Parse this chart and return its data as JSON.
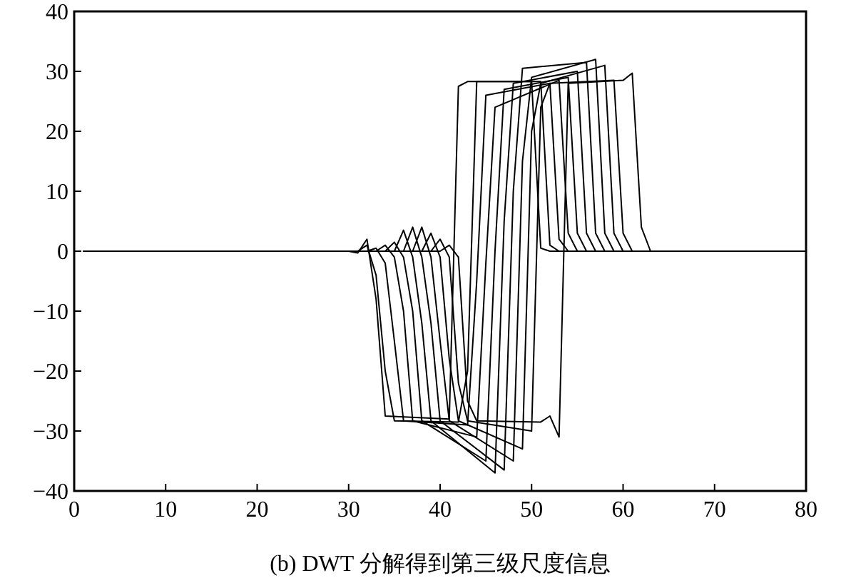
{
  "chart_data": {
    "type": "line",
    "title": "(b) DWT 分解得到第三级尺度信息",
    "xlim": [
      0,
      80
    ],
    "ylim": [
      -40,
      40
    ],
    "xticks": [
      0,
      10,
      20,
      30,
      40,
      50,
      60,
      70,
      80
    ],
    "yticks": [
      -40,
      -30,
      -20,
      -10,
      0,
      10,
      20,
      30,
      40
    ],
    "grid": false,
    "marker": "none",
    "line_style": "solid",
    "series": [
      {
        "color": "#000000",
        "x": [
          1,
          30,
          31,
          32,
          33,
          34,
          41,
          42,
          43,
          50,
          51,
          52,
          80
        ],
        "values": [
          0,
          0,
          -0.3,
          2,
          -8,
          -27.5,
          -28,
          27.5,
          28.3,
          28.3,
          0.5,
          0,
          0
        ]
      },
      {
        "color": "#000000",
        "x": [
          1,
          31,
          32,
          33,
          34,
          35,
          42,
          43,
          44,
          51,
          52,
          53,
          80
        ],
        "values": [
          0,
          0,
          1,
          -4,
          -20,
          -28.3,
          -28.5,
          -20,
          28.3,
          28.3,
          1,
          0,
          0
        ]
      },
      {
        "color": "#000000",
        "x": [
          1,
          32,
          33,
          34,
          35,
          36,
          43,
          44,
          45,
          52,
          53,
          54,
          80
        ],
        "values": [
          0,
          0,
          0.5,
          -2,
          -15,
          -28.3,
          -29,
          -5,
          26,
          28,
          2,
          0,
          0
        ]
      },
      {
        "color": "#000000",
        "x": [
          1,
          33,
          34,
          35,
          36,
          37,
          44,
          45,
          46,
          53,
          54,
          55,
          80
        ],
        "values": [
          0,
          0,
          1,
          -1,
          -10,
          -28.3,
          -31,
          -2,
          24,
          28.5,
          3,
          0,
          0
        ]
      },
      {
        "color": "#000000",
        "x": [
          1,
          34,
          35,
          36,
          37,
          38,
          45,
          46,
          47,
          54,
          55,
          56,
          80
        ],
        "values": [
          0,
          0,
          1.5,
          -1,
          -10,
          -28.3,
          -35,
          0,
          27,
          29,
          3,
          0,
          0
        ]
      },
      {
        "color": "#000000",
        "x": [
          1,
          35,
          36,
          37,
          38,
          39,
          46,
          47,
          48,
          55,
          56,
          57,
          80
        ],
        "values": [
          0,
          0,
          3.5,
          -1,
          -12,
          -28.3,
          -37,
          5,
          28,
          30,
          3,
          0,
          0
        ]
      },
      {
        "color": "#000000",
        "x": [
          1,
          36,
          37,
          38,
          39,
          40,
          47,
          48,
          49,
          56,
          57,
          58,
          80
        ],
        "values": [
          0,
          0,
          4,
          -1,
          -12,
          -28.3,
          -36.5,
          10,
          30.5,
          31.5,
          3,
          0,
          0
        ]
      },
      {
        "color": "#000000",
        "x": [
          1,
          37,
          38,
          39,
          40,
          41,
          48,
          49,
          50,
          57,
          58,
          59,
          80
        ],
        "values": [
          0,
          0,
          4,
          -1,
          -15,
          -28.3,
          -35,
          15,
          29,
          32,
          3,
          0,
          0
        ]
      },
      {
        "color": "#000000",
        "x": [
          1,
          38,
          39,
          40,
          41,
          42,
          49,
          50,
          51,
          58,
          59,
          60,
          80
        ],
        "values": [
          0,
          0,
          3,
          -1,
          -18,
          -28.3,
          -33,
          20,
          28,
          31,
          3,
          0,
          0
        ]
      },
      {
        "color": "#000000",
        "x": [
          1,
          39,
          40,
          41,
          42,
          43,
          50,
          51,
          52,
          59,
          60,
          61,
          80
        ],
        "values": [
          0,
          0,
          2,
          -1,
          -22,
          -28.3,
          -30,
          24,
          28,
          28.5,
          3,
          0,
          0
        ]
      },
      {
        "color": "#000000",
        "x": [
          1,
          40,
          41,
          42,
          43,
          44,
          51,
          52,
          53,
          54,
          60,
          61,
          62,
          63,
          80
        ],
        "values": [
          0,
          0,
          1,
          -1,
          -25,
          -28.3,
          -28.5,
          -27.5,
          -31,
          28,
          28.5,
          29.7,
          4,
          0,
          0
        ]
      }
    ]
  }
}
